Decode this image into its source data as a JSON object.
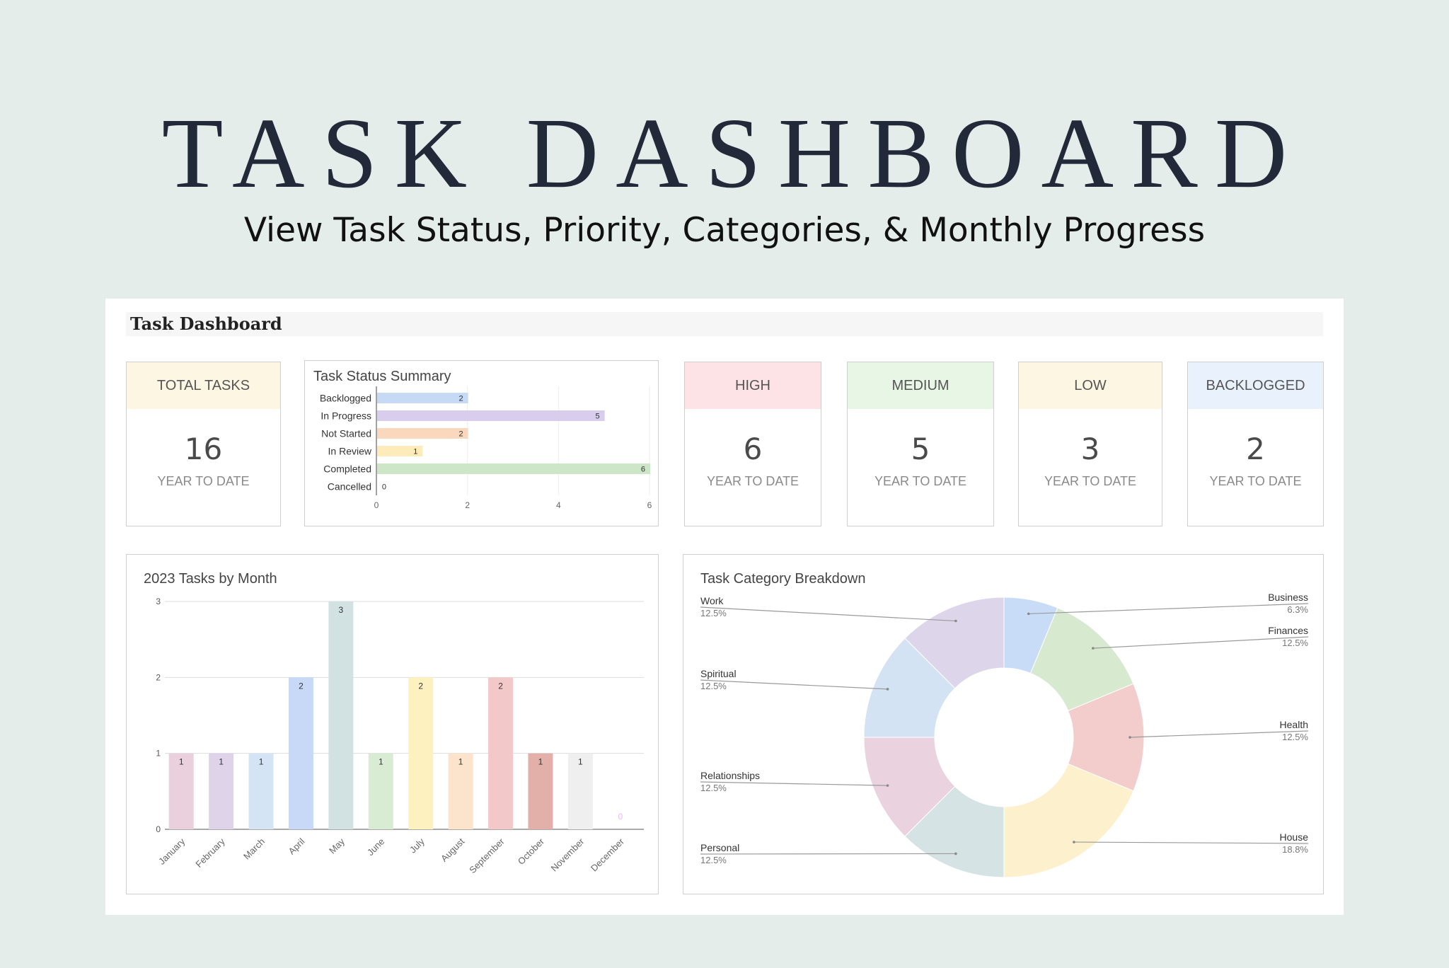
{
  "hero": {
    "title": "TASK DASHBOARD",
    "subtitle": "View Task Status, Priority, Categories, & Monthly Progress"
  },
  "sheet": {
    "header": "Task Dashboard"
  },
  "kpis": [
    {
      "label": "TOTAL TASKS",
      "value": "16",
      "sub": "YEAR TO DATE",
      "color": "#fdf6e3"
    },
    {
      "label": "HIGH",
      "value": "6",
      "sub": "YEAR TO DATE",
      "color": "#fde3e6"
    },
    {
      "label": "MEDIUM",
      "value": "5",
      "sub": "YEAR TO DATE",
      "color": "#e8f6e6"
    },
    {
      "label": "LOW",
      "value": "3",
      "sub": "YEAR TO DATE",
      "color": "#fdf6e3"
    },
    {
      "label": "BACKLOGGED",
      "value": "2",
      "sub": "YEAR TO DATE",
      "color": "#e9f2fc"
    }
  ],
  "chart_data": [
    {
      "type": "bar",
      "orientation": "horizontal",
      "title": "Task Status Summary",
      "categories": [
        "Backlogged",
        "In Progress",
        "Not Started",
        "In Review",
        "Completed",
        "Cancelled"
      ],
      "values": [
        2,
        5,
        2,
        1,
        6,
        0
      ],
      "colors": [
        "#c6d9f5",
        "#d8cdec",
        "#f9d8be",
        "#fdecba",
        "#cde6c8",
        "#dddddd"
      ],
      "xlim": [
        0,
        6
      ],
      "xticks": [
        0,
        2,
        4,
        6
      ],
      "data_labels": true
    },
    {
      "type": "bar",
      "title": "2023 Tasks by Month",
      "categories": [
        "January",
        "February",
        "March",
        "April",
        "May",
        "June",
        "July",
        "August",
        "September",
        "October",
        "November",
        "December"
      ],
      "values": [
        1,
        1,
        1,
        2,
        3,
        1,
        2,
        1,
        2,
        1,
        1,
        0
      ],
      "colors": [
        "#ead0dc",
        "#dfd3ea",
        "#d5e4f5",
        "#c8d9f7",
        "#d2e2e3",
        "#d8ecd3",
        "#fdf1c0",
        "#fbe4cb",
        "#f3c8c8",
        "#e2b0a8",
        "#efefef",
        "#f3d5f5"
      ],
      "ylim": [
        0,
        3
      ],
      "yticks": [
        0,
        1,
        2,
        3
      ],
      "data_labels": true
    },
    {
      "type": "pie",
      "donut": true,
      "title": "Task Category Breakdown",
      "slices": [
        {
          "label": "Business",
          "pct": "6.3%",
          "value": 6.25,
          "color": "#c8dbf7"
        },
        {
          "label": "Finances",
          "pct": "12.5%",
          "value": 12.5,
          "color": "#d7ead0"
        },
        {
          "label": "Health",
          "pct": "12.5%",
          "value": 12.5,
          "color": "#f3cccc"
        },
        {
          "label": "House",
          "pct": "18.8%",
          "value": 18.75,
          "color": "#fdf0cc"
        },
        {
          "label": "Personal",
          "pct": "12.5%",
          "value": 12.5,
          "color": "#d6e3e4"
        },
        {
          "label": "Relationships",
          "pct": "12.5%",
          "value": 12.5,
          "color": "#ead3de"
        },
        {
          "label": "Spiritual",
          "pct": "12.5%",
          "value": 12.5,
          "color": "#d4e3f3"
        },
        {
          "label": "Work",
          "pct": "12.5%",
          "value": 12.5,
          "color": "#ddd5ea"
        }
      ]
    }
  ]
}
